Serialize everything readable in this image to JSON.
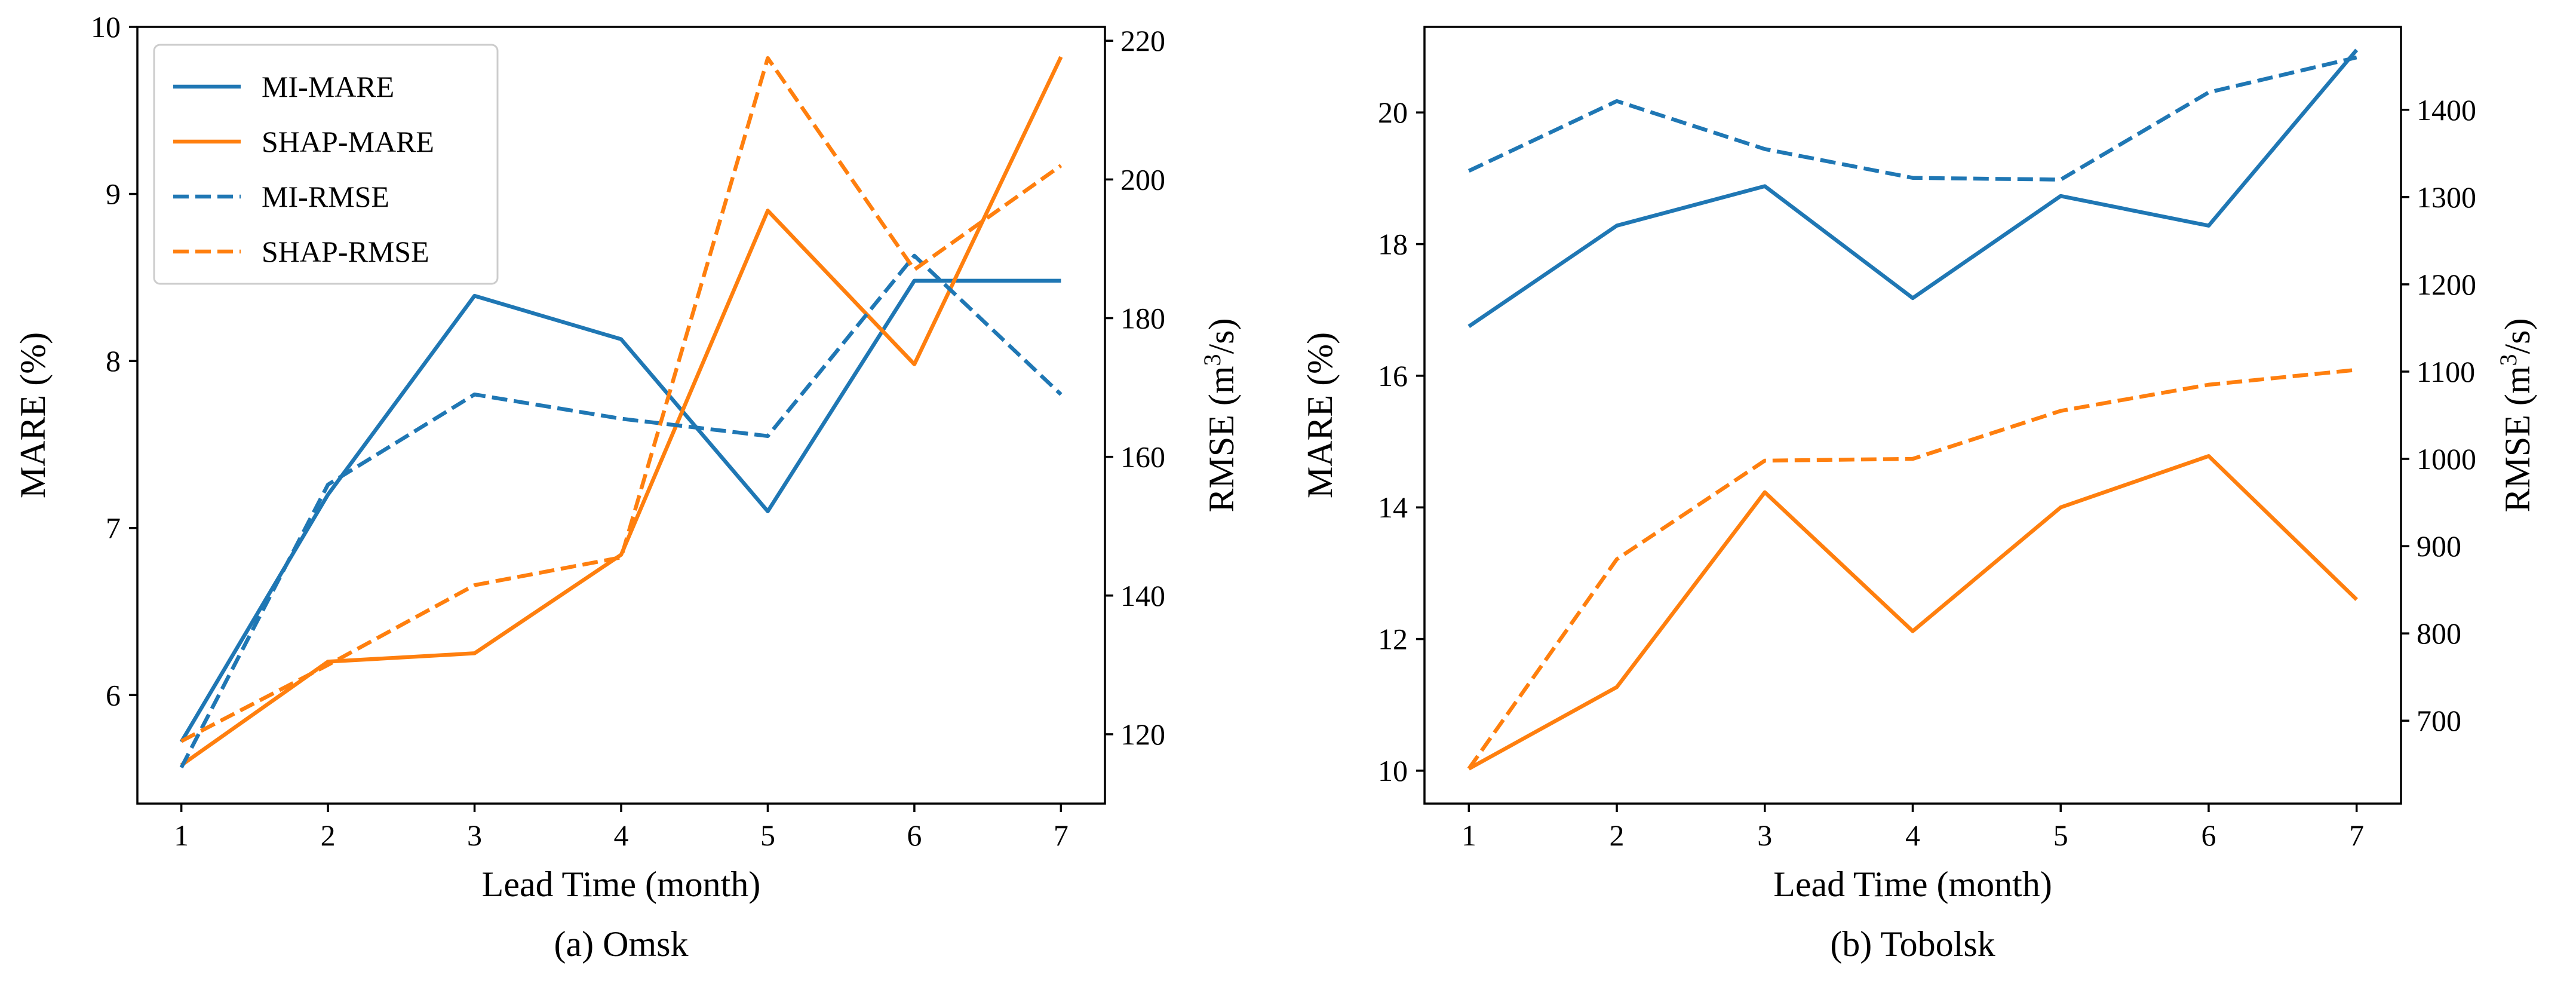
{
  "chart_data": [
    {
      "type": "line",
      "caption": "(a) Omsk",
      "xlabel": "Lead Time (month)",
      "ylabel_left": "MARE (%)",
      "ylabel_right": "RMSE (m3/s)",
      "ylabel_right_parts": {
        "pre": "RMSE (m",
        "sup": "3",
        "post": "/s)"
      },
      "x": [
        1,
        2,
        3,
        4,
        5,
        6,
        7
      ],
      "x_ticks": [
        "1",
        "2",
        "3",
        "4",
        "5",
        "6",
        "7"
      ],
      "xlim": [
        0.7,
        7.3
      ],
      "ylim_left": [
        5.35,
        10.0
      ],
      "ylim_right": [
        110.0,
        222.0
      ],
      "left_ticks": [
        "6",
        "7",
        "8",
        "9",
        "10"
      ],
      "right_ticks": [
        "120",
        "140",
        "160",
        "180",
        "200",
        "220"
      ],
      "legend_location": "upper-left",
      "series": [
        {
          "name": "MI-MARE",
          "axis": "left",
          "style": "solid",
          "color": "#1f77b4",
          "values": [
            5.72,
            7.2,
            8.39,
            8.13,
            7.1,
            8.48,
            8.48
          ]
        },
        {
          "name": "SHAP-MARE",
          "axis": "left",
          "style": "solid",
          "color": "#ff7f0e",
          "values": [
            5.58,
            6.2,
            6.25,
            6.84,
            8.9,
            7.98,
            9.82
          ]
        },
        {
          "name": "MI-RMSE",
          "axis": "right",
          "style": "dashed",
          "color": "#1f77b4",
          "values": [
            115.2,
            156.0,
            169.0,
            165.5,
            163.0,
            189.0,
            169.0
          ]
        },
        {
          "name": "SHAP-RMSE",
          "axis": "right",
          "style": "dashed",
          "color": "#ff7f0e",
          "values": [
            119.0,
            130.0,
            141.5,
            145.5,
            217.5,
            187.0,
            202.0
          ]
        }
      ]
    },
    {
      "type": "line",
      "caption": "(b) Tobolsk",
      "xlabel": "Lead Time (month)",
      "ylabel_left": "MARE (%)",
      "ylabel_right": "RMSE (m3/s)",
      "ylabel_right_parts": {
        "pre": "RMSE (m",
        "sup": "3",
        "post": "/s)"
      },
      "x": [
        1,
        2,
        3,
        4,
        5,
        6,
        7
      ],
      "x_ticks": [
        "1",
        "2",
        "3",
        "4",
        "5",
        "6",
        "7"
      ],
      "xlim": [
        0.7,
        7.3
      ],
      "ylim_left": [
        9.5,
        21.3
      ],
      "ylim_right": [
        605.0,
        1495.0
      ],
      "left_ticks": [
        "10",
        "12",
        "14",
        "16",
        "18",
        "20"
      ],
      "right_ticks": [
        "700",
        "800",
        "900",
        "1000",
        "1100",
        "1200",
        "1300",
        "1400"
      ],
      "legend_location": "none",
      "series": [
        {
          "name": "MI-MARE",
          "axis": "left",
          "style": "solid",
          "color": "#1f77b4",
          "values": [
            16.75,
            18.28,
            18.88,
            17.18,
            18.73,
            18.28,
            20.95
          ]
        },
        {
          "name": "SHAP-MARE",
          "axis": "left",
          "style": "solid",
          "color": "#ff7f0e",
          "values": [
            10.03,
            11.27,
            14.23,
            12.12,
            14.0,
            14.78,
            12.6
          ]
        },
        {
          "name": "MI-RMSE",
          "axis": "right",
          "style": "dashed",
          "color": "#1f77b4",
          "values": [
            1330.0,
            1410.0,
            1355.0,
            1322.0,
            1320.0,
            1420.0,
            1460.0
          ]
        },
        {
          "name": "SHAP-RMSE",
          "axis": "right",
          "style": "dashed",
          "color": "#ff7f0e",
          "values": [
            645.0,
            885.0,
            998.0,
            1000.0,
            1055.0,
            1085.0,
            1102.0
          ]
        }
      ]
    }
  ]
}
